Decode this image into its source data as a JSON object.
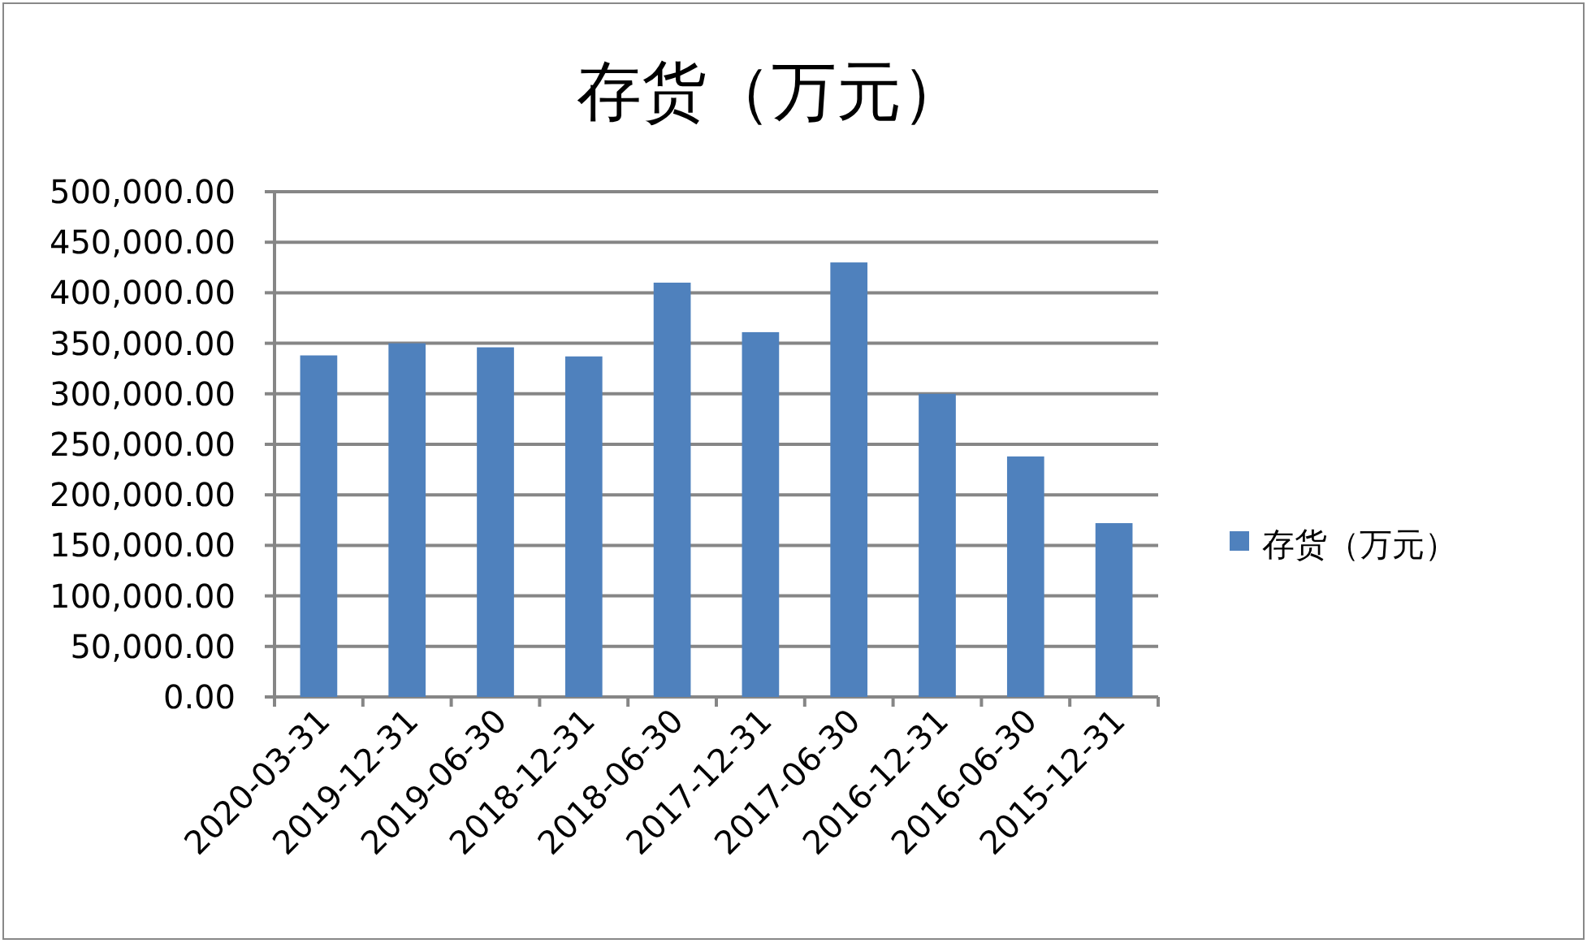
{
  "chart_data": {
    "type": "bar",
    "title": "存货（万元）",
    "categories": [
      "2020-03-31",
      "2019-12-31",
      "2019-06-30",
      "2018-12-31",
      "2018-06-30",
      "2017-12-31",
      "2017-06-30",
      "2016-12-31",
      "2016-06-30",
      "2015-12-31"
    ],
    "series": [
      {
        "name": "存货（万元）",
        "color": "#4f81bd",
        "values": [
          338000,
          350000,
          346000,
          337000,
          410000,
          361000,
          430000,
          300000,
          238000,
          172000
        ]
      }
    ],
    "ylim": [
      0,
      500000
    ],
    "yticks": [
      {
        "value": 0,
        "label": "0.00"
      },
      {
        "value": 50000,
        "label": "50,000.00"
      },
      {
        "value": 100000,
        "label": "100,000.00"
      },
      {
        "value": 150000,
        "label": "150,000.00"
      },
      {
        "value": 200000,
        "label": "200,000.00"
      },
      {
        "value": 250000,
        "label": "250,000.00"
      },
      {
        "value": 300000,
        "label": "300,000.00"
      },
      {
        "value": 350000,
        "label": "350,000.00"
      },
      {
        "value": 400000,
        "label": "400,000.00"
      },
      {
        "value": 450000,
        "label": "450,000.00"
      },
      {
        "value": 500000,
        "label": "500,000.00"
      }
    ],
    "grid": "y",
    "legend": "right"
  }
}
